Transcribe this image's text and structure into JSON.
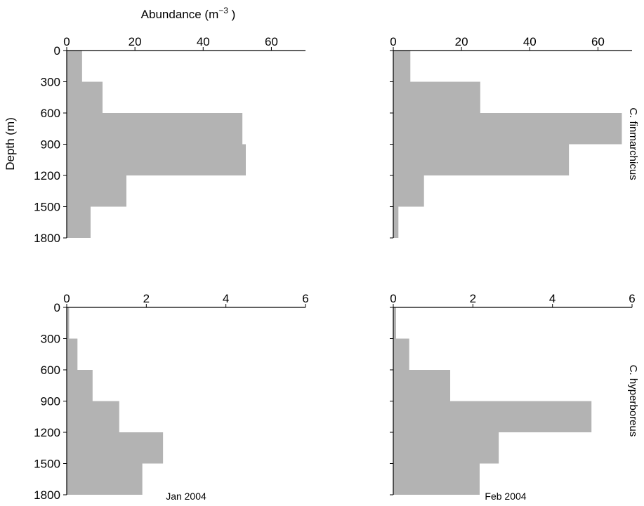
{
  "chart_data": {
    "type": "bar",
    "orientation": "horizontal",
    "x_title": "Abundance (m",
    "x_title_superscript": "−3",
    "x_title_close": " )",
    "y_title": "Depth (m)",
    "y_ticks": [
      "0",
      "300",
      "600",
      "900",
      "1200",
      "1500",
      "1800"
    ],
    "ylim": [
      0,
      1800
    ],
    "bar_color": "#b3b3b3",
    "panels": [
      {
        "id": "jan-finmarchicus",
        "species": "",
        "month": "",
        "xlim": [
          0,
          70
        ],
        "x_ticks": [
          "0",
          "20",
          "40",
          "60"
        ],
        "x_tick_values": [
          0,
          20,
          40,
          60
        ],
        "bins": [
          {
            "depth_from": 0,
            "depth_to": 300,
            "value": 4.5
          },
          {
            "depth_from": 300,
            "depth_to": 600,
            "value": 10.5
          },
          {
            "depth_from": 600,
            "depth_to": 900,
            "value": 51.5
          },
          {
            "depth_from": 900,
            "depth_to": 1200,
            "value": 52.5
          },
          {
            "depth_from": 1200,
            "depth_to": 1500,
            "value": 17.5
          },
          {
            "depth_from": 1500,
            "depth_to": 1800,
            "value": 7
          }
        ]
      },
      {
        "id": "feb-finmarchicus",
        "species": "C. finmarchicus",
        "month": "",
        "xlim": [
          0,
          70
        ],
        "x_ticks": [
          "0",
          "20",
          "40",
          "60"
        ],
        "x_tick_values": [
          0,
          20,
          40,
          60
        ],
        "bins": [
          {
            "depth_from": 0,
            "depth_to": 300,
            "value": 5
          },
          {
            "depth_from": 300,
            "depth_to": 600,
            "value": 25.5
          },
          {
            "depth_from": 600,
            "depth_to": 900,
            "value": 67
          },
          {
            "depth_from": 900,
            "depth_to": 1200,
            "value": 51.5
          },
          {
            "depth_from": 1200,
            "depth_to": 1500,
            "value": 9
          },
          {
            "depth_from": 1500,
            "depth_to": 1800,
            "value": 1.5
          }
        ]
      },
      {
        "id": "jan-hyperboreus",
        "species": "",
        "month": "Jan 2004",
        "xlim": [
          0,
          6
        ],
        "x_ticks": [
          "0",
          "2",
          "4",
          "6"
        ],
        "x_tick_values": [
          0,
          2,
          4,
          6
        ],
        "bins": [
          {
            "depth_from": 0,
            "depth_to": 300,
            "value": 0.06
          },
          {
            "depth_from": 300,
            "depth_to": 600,
            "value": 0.27
          },
          {
            "depth_from": 600,
            "depth_to": 900,
            "value": 0.65
          },
          {
            "depth_from": 900,
            "depth_to": 1200,
            "value": 1.32
          },
          {
            "depth_from": 1200,
            "depth_to": 1500,
            "value": 2.42
          },
          {
            "depth_from": 1500,
            "depth_to": 1800,
            "value": 1.9
          }
        ]
      },
      {
        "id": "feb-hyperboreus",
        "species": "C. hyperboreus",
        "month": "Feb 2004",
        "xlim": [
          0,
          6
        ],
        "x_ticks": [
          "0",
          "2",
          "4",
          "6"
        ],
        "x_tick_values": [
          0,
          2,
          4,
          6
        ],
        "bins": [
          {
            "depth_from": 0,
            "depth_to": 300,
            "value": 0.07
          },
          {
            "depth_from": 300,
            "depth_to": 600,
            "value": 0.4
          },
          {
            "depth_from": 600,
            "depth_to": 900,
            "value": 1.43
          },
          {
            "depth_from": 900,
            "depth_to": 1200,
            "value": 4.98
          },
          {
            "depth_from": 1200,
            "depth_to": 1500,
            "value": 2.65
          },
          {
            "depth_from": 1500,
            "depth_to": 1800,
            "value": 2.17
          }
        ]
      }
    ]
  }
}
